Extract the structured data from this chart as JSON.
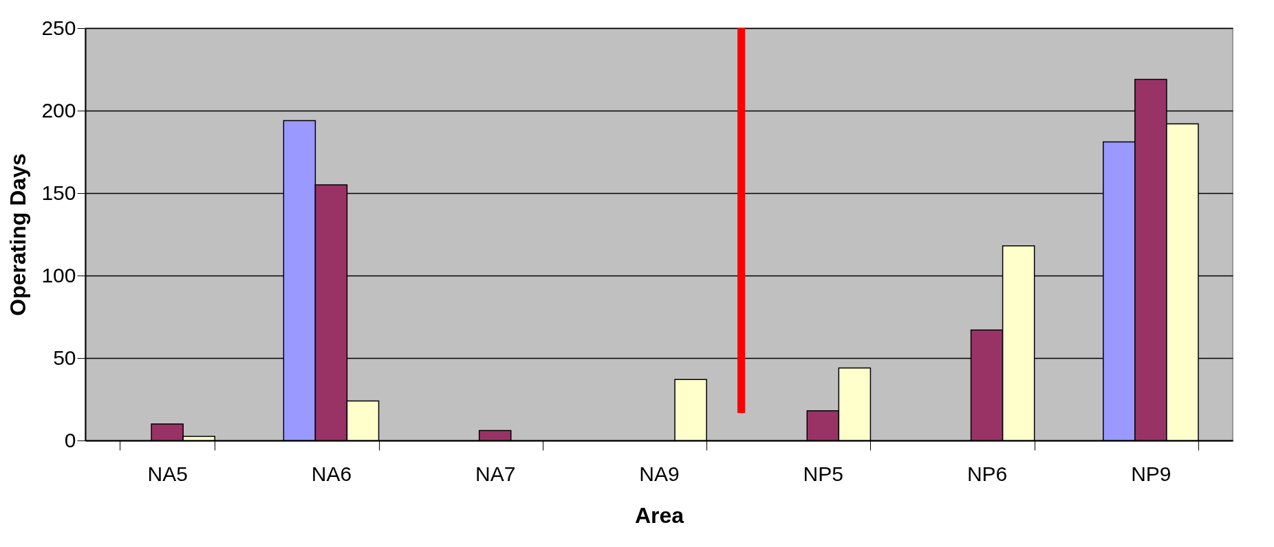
{
  "chart_data": {
    "type": "bar",
    "xlabel": "Area",
    "ylabel": "Operating Days",
    "categories": [
      "NA5",
      "NA6",
      "NA7",
      "NA9",
      "NP5",
      "NP6",
      "NP9"
    ],
    "series": [
      {
        "color": "#9999ff",
        "values": [
          null,
          194,
          null,
          null,
          null,
          null,
          181
        ]
      },
      {
        "color": "#993366",
        "values": [
          10,
          155,
          6,
          null,
          18,
          67,
          219
        ]
      },
      {
        "color": "#ffffcc",
        "values": [
          2.5,
          24,
          null,
          37,
          44,
          118,
          192
        ]
      }
    ],
    "ylim": [
      0,
      250
    ],
    "yticks": [
      0,
      50,
      100,
      150,
      200,
      250
    ],
    "grid": "y",
    "legend": false
  }
}
